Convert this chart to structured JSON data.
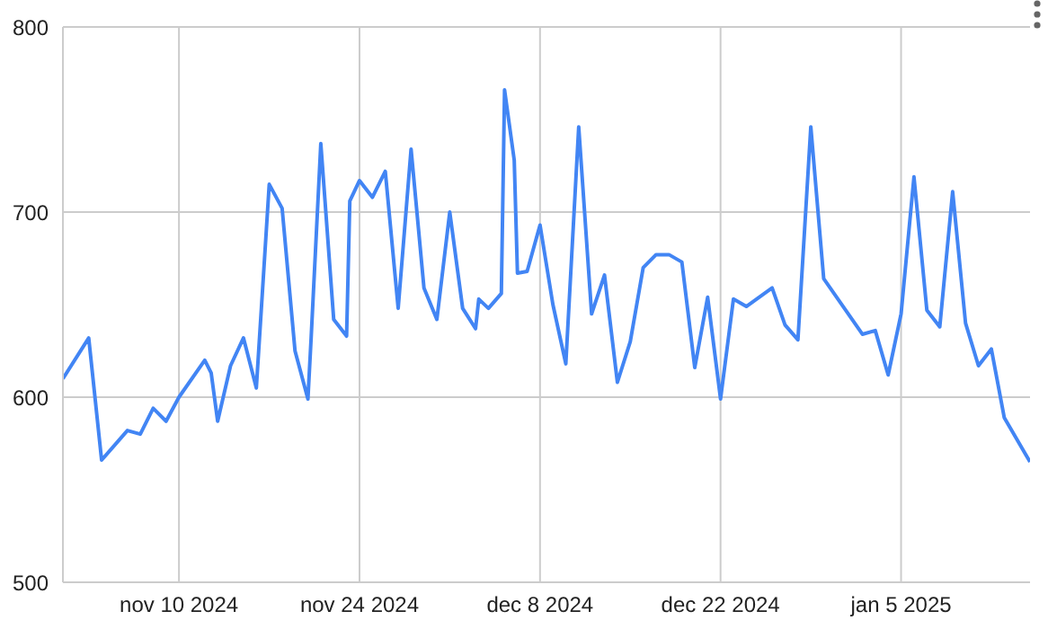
{
  "chart_data": {
    "type": "line",
    "x": [
      "2024-11-01",
      "2024-11-03",
      "2024-11-04",
      "2024-11-06",
      "2024-11-07",
      "2024-11-08",
      "2024-11-09",
      "2024-11-10",
      "2024-11-12",
      "2024-11-12T12:00",
      "2024-11-13",
      "2024-11-14",
      "2024-11-15",
      "2024-11-16",
      "2024-11-17",
      "2024-11-18",
      "2024-11-19",
      "2024-11-20",
      "2024-11-20T06:00",
      "2024-11-21",
      "2024-11-22",
      "2024-11-23",
      "2024-11-23T06:00",
      "2024-11-24",
      "2024-11-25",
      "2024-11-26",
      "2024-11-27",
      "2024-11-28",
      "2024-11-29",
      "2024-11-30",
      "2024-12-01",
      "2024-12-02",
      "2024-12-03",
      "2024-12-03T06:00",
      "2024-12-04",
      "2024-12-05",
      "2024-12-05T06:00",
      "2024-12-06",
      "2024-12-06T06:00",
      "2024-12-07",
      "2024-12-08",
      "2024-12-09",
      "2024-12-10",
      "2024-12-11",
      "2024-12-12",
      "2024-12-13",
      "2024-12-14",
      "2024-12-15",
      "2024-12-16",
      "2024-12-17",
      "2024-12-18",
      "2024-12-19",
      "2024-12-20",
      "2024-12-21",
      "2024-12-22",
      "2024-12-23",
      "2024-12-24",
      "2024-12-26",
      "2024-12-27",
      "2024-12-28",
      "2024-12-29",
      "2024-12-30",
      "2025-01-02",
      "2025-01-03",
      "2025-01-04",
      "2025-01-05",
      "2025-01-06",
      "2025-01-07",
      "2025-01-08",
      "2025-01-09",
      "2025-01-10",
      "2025-01-11",
      "2025-01-12",
      "2025-01-13",
      "2025-01-15"
    ],
    "series": [
      {
        "color": "#4285f4",
        "values": [
          610,
          632,
          566,
          582,
          580,
          594,
          587,
          600,
          620,
          613,
          587,
          617,
          632,
          605,
          715,
          702,
          625,
          599,
          632,
          737,
          642,
          633,
          706,
          717,
          708,
          722,
          648,
          734,
          659,
          642,
          700,
          648,
          637,
          653,
          648,
          656,
          766,
          728,
          667,
          668,
          693,
          650,
          618,
          746,
          645,
          666,
          608,
          630,
          670,
          677,
          677,
          673,
          616,
          654,
          599,
          653,
          649,
          659,
          639,
          631,
          746,
          664,
          634,
          636,
          612,
          645,
          719,
          647,
          638,
          711,
          640,
          617,
          626,
          589,
          565
        ]
      }
    ],
    "xlim": [
      "2024-11-01",
      "2025-01-15"
    ],
    "xticks": [
      {
        "value": "2024-11-10",
        "label": "nov 10 2024"
      },
      {
        "value": "2024-11-24",
        "label": "nov 24 2024"
      },
      {
        "value": "2024-12-08",
        "label": "dec 8 2024"
      },
      {
        "value": "2024-12-22",
        "label": "dec 22 2024"
      },
      {
        "value": "2025-01-05",
        "label": "jan 5 2025"
      }
    ],
    "ylim": [
      500,
      800
    ],
    "yticks": [
      500,
      600,
      700,
      800
    ],
    "grid": true,
    "legend": false,
    "marker": "none",
    "line_style": "solid"
  }
}
